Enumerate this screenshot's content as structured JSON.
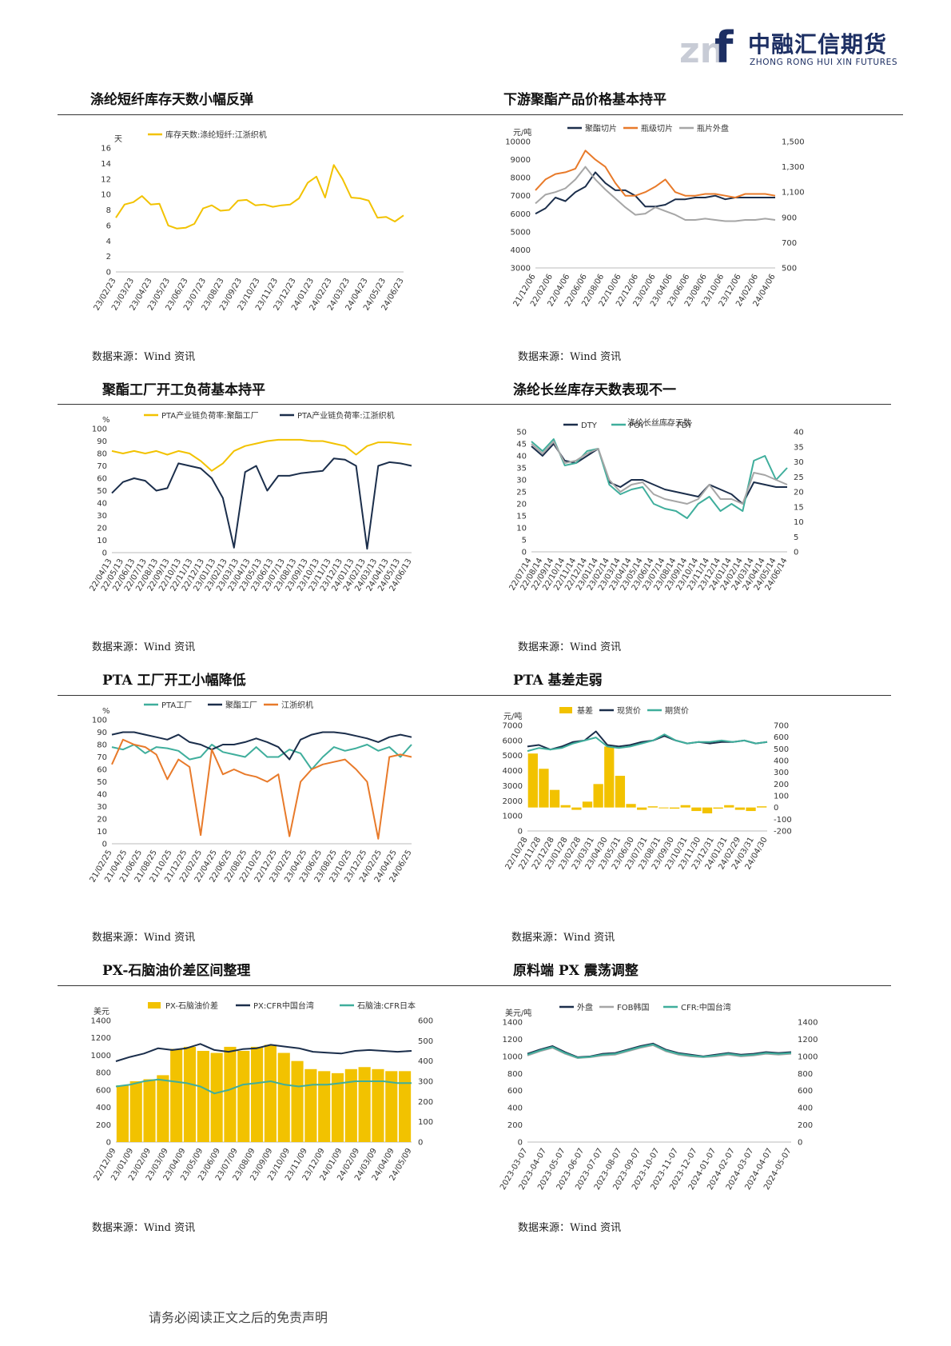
{
  "header": {
    "logo_text": "中融汇信期货",
    "logo_en": "ZHONG RONG HUI XIN FUTURES",
    "logo_mark": "znf"
  },
  "sections": [
    {
      "title": "涤纶短纤库存天数小幅反弹",
      "source": "数据来源：Wind 资讯"
    },
    {
      "title": "下游聚酯产品价格基本持平",
      "source": "数据来源：Wind 资讯"
    },
    {
      "title": "聚酯工厂开工负荷基本持平",
      "source": "数据来源：Wind 资讯"
    },
    {
      "title": "涤纶长丝库存天数表现不一",
      "source": "数据来源：Wind 资讯"
    },
    {
      "title": "PTA 工厂开工小幅降低",
      "source": "数据来源：Wind 资讯"
    },
    {
      "title": "PTA 基差走弱",
      "source": "数据来源：Wind 资讯"
    },
    {
      "title": "PX-石脑油价差区间整理",
      "source": "数据来源：Wind 资讯"
    },
    {
      "title": "原料端 PX 震荡调整",
      "source": "数据来源：Wind 资讯"
    }
  ],
  "footer": {
    "text": "请务必阅读正文之后的免责声明"
  },
  "chart_data": [
    {
      "type": "line",
      "unit": "天",
      "ylim": [
        0,
        16
      ],
      "yticks": [
        0,
        2,
        4,
        6,
        8,
        10,
        12,
        14,
        16
      ],
      "xticks": [
        "23/02/23",
        "23/03/23",
        "23/04/23",
        "23/05/23",
        "23/06/23",
        "23/07/23",
        "23/08/23",
        "23/09/23",
        "23/10/23",
        "23/11/23",
        "23/12/23",
        "24/01/23",
        "24/02/23",
        "24/03/23",
        "24/04/23",
        "24/05/23",
        "24/06/23"
      ],
      "series": [
        {
          "name": "库存天数:涤纶短纤:江浙织机",
          "color": "#f2c200",
          "values": [
            7.0,
            8.7,
            9.0,
            9.8,
            8.7,
            8.8,
            6.0,
            5.6,
            5.7,
            6.2,
            8.2,
            8.6,
            7.9,
            8.0,
            9.2,
            9.3,
            8.6,
            8.7,
            8.4,
            8.6,
            8.7,
            9.5,
            11.5,
            12.3,
            9.6,
            13.8,
            12.0,
            9.6,
            9.5,
            9.2,
            7.0,
            7.1,
            6.5,
            7.3
          ]
        }
      ]
    },
    {
      "type": "line",
      "unit": "元/吨",
      "ylim": [
        3000,
        10000
      ],
      "yticks": [
        3000,
        4000,
        5000,
        6000,
        7000,
        8000,
        9000,
        10000
      ],
      "y2lim": [
        500,
        1500
      ],
      "y2ticks": [
        "500",
        "700",
        "900",
        "1,100",
        "1,300",
        "1,500"
      ],
      "xticks": [
        "21/12/06",
        "22/02/06",
        "22/04/06",
        "22/06/06",
        "22/08/06",
        "22/10/06",
        "22/12/06",
        "23/02/06",
        "23/04/06",
        "23/06/06",
        "23/08/06",
        "23/10/06",
        "23/12/06",
        "24/02/06",
        "24/04/06"
      ],
      "series": [
        {
          "name": "聚酯切片",
          "color": "#1b2e4b",
          "axis": "left",
          "values": [
            6000,
            6300,
            6900,
            6700,
            7200,
            7500,
            8300,
            7700,
            7300,
            7300,
            7000,
            6400,
            6400,
            6500,
            6800,
            6800,
            6900,
            6900,
            7000,
            6800,
            6900,
            6900,
            6900,
            6900,
            6900
          ]
        },
        {
          "name": "瓶级切片",
          "color": "#e87a2a",
          "axis": "left",
          "values": [
            7300,
            7900,
            8200,
            8300,
            8500,
            9500,
            9000,
            8600,
            7700,
            7000,
            7000,
            7200,
            7500,
            7900,
            7200,
            7000,
            7000,
            7100,
            7100,
            7000,
            6900,
            7100,
            7100,
            7100,
            7000
          ]
        },
        {
          "name": "瓶片外盘",
          "color": "#a6a6a6",
          "axis": "right",
          "values": [
            1010,
            1080,
            1100,
            1130,
            1200,
            1300,
            1200,
            1120,
            1050,
            980,
            920,
            930,
            980,
            950,
            920,
            880,
            880,
            890,
            880,
            870,
            870,
            880,
            880,
            890,
            880
          ]
        }
      ]
    },
    {
      "type": "line",
      "unit": "%",
      "ylim": [
        0,
        100
      ],
      "yticks": [
        0,
        10,
        20,
        30,
        40,
        50,
        60,
        70,
        80,
        90,
        100
      ],
      "xticks": [
        "22/04/13",
        "22/05/13",
        "22/06/13",
        "22/07/13",
        "22/08/13",
        "22/09/13",
        "22/10/13",
        "22/11/13",
        "22/12/13",
        "23/01/13",
        "23/02/13",
        "23/03/13",
        "23/04/13",
        "23/05/13",
        "23/06/13",
        "23/07/13",
        "23/08/13",
        "23/09/13",
        "23/10/13",
        "23/11/13",
        "23/12/13",
        "24/01/13",
        "24/02/13",
        "24/03/13",
        "24/04/13",
        "24/05/13",
        "24/06/13"
      ],
      "series": [
        {
          "name": "PTA产业链负荷率:聚酯工厂",
          "color": "#f2c200",
          "values": [
            82,
            80,
            82,
            80,
            82,
            79,
            82,
            80,
            74,
            66,
            72,
            82,
            86,
            88,
            90,
            91,
            91,
            91,
            90,
            90,
            88,
            86,
            79,
            86,
            89,
            89,
            88,
            87
          ]
        },
        {
          "name": "PTA产业链负荷率:江浙织机",
          "color": "#1b2e4b",
          "values": [
            48,
            57,
            60,
            58,
            50,
            52,
            72,
            70,
            68,
            60,
            44,
            4,
            65,
            70,
            50,
            62,
            62,
            64,
            65,
            66,
            76,
            75,
            70,
            3,
            70,
            73,
            72,
            70
          ]
        }
      ]
    },
    {
      "type": "line",
      "ylim": [
        0,
        50
      ],
      "yticks": [
        0,
        5,
        10,
        15,
        20,
        25,
        30,
        35,
        40,
        45,
        50
      ],
      "y2lim": [
        0,
        40
      ],
      "y2ticks": [
        0,
        5,
        10,
        15,
        20,
        25,
        30,
        35,
        40
      ],
      "title": "涤纶长丝库存天数",
      "xticks": [
        "22/07/14",
        "22/08/14",
        "22/09/14",
        "22/10/14",
        "22/11/14",
        "22/12/14",
        "23/01/14",
        "23/02/14",
        "23/03/14",
        "23/04/14",
        "23/05/14",
        "23/06/14",
        "23/07/14",
        "23/08/14",
        "23/09/14",
        "23/10/14",
        "23/11/14",
        "23/12/14",
        "24/01/14",
        "24/02/14",
        "24/03/14",
        "24/04/14",
        "24/05/14",
        "24/06/14"
      ],
      "series": [
        {
          "name": "DTY",
          "color": "#1b2e4b",
          "values": [
            44,
            40,
            45,
            38,
            37,
            40,
            43,
            29,
            27,
            30,
            30,
            28,
            26,
            25,
            24,
            23,
            28,
            26,
            24,
            20,
            29,
            28,
            27,
            27
          ]
        },
        {
          "name": "POY",
          "color": "#3fae9c",
          "values": [
            46,
            42,
            47,
            36,
            37,
            42,
            43,
            28,
            24,
            26,
            27,
            20,
            18,
            17,
            14,
            20,
            23,
            17,
            20,
            17,
            38,
            40,
            30,
            35
          ]
        },
        {
          "name": "FDY",
          "color": "#a6a6a6",
          "values": [
            45,
            41,
            46,
            37,
            38,
            41,
            43,
            30,
            25,
            28,
            29,
            24,
            22,
            21,
            20,
            22,
            28,
            22,
            22,
            20,
            33,
            32,
            30,
            28
          ]
        }
      ]
    },
    {
      "type": "line",
      "unit": "%",
      "ylim": [
        0,
        100
      ],
      "yticks": [
        0,
        10,
        20,
        30,
        40,
        50,
        60,
        70,
        80,
        90,
        100
      ],
      "xticks": [
        "21/02/25",
        "21/04/25",
        "21/06/25",
        "21/08/25",
        "21/10/25",
        "21/12/25",
        "22/02/25",
        "22/04/25",
        "22/06/25",
        "22/08/25",
        "22/10/25",
        "22/12/25",
        "23/02/25",
        "23/04/25",
        "23/06/25",
        "23/08/25",
        "23/10/25",
        "23/12/25",
        "24/02/25",
        "24/04/25",
        "24/06/25"
      ],
      "series": [
        {
          "name": "PTA工厂",
          "color": "#3fae9c",
          "values": [
            78,
            76,
            80,
            73,
            78,
            77,
            75,
            68,
            70,
            80,
            74,
            72,
            70,
            78,
            70,
            70,
            76,
            73,
            60,
            70,
            78,
            75,
            77,
            80,
            75,
            78,
            70,
            80
          ]
        },
        {
          "name": "聚酯工厂",
          "color": "#1b2e4b",
          "values": [
            88,
            90,
            90,
            88,
            86,
            84,
            88,
            82,
            80,
            76,
            80,
            80,
            82,
            85,
            82,
            78,
            68,
            84,
            88,
            90,
            90,
            89,
            87,
            85,
            82,
            86,
            88,
            86
          ]
        },
        {
          "name": "江浙织机",
          "color": "#e87a2a",
          "values": [
            64,
            84,
            80,
            78,
            72,
            52,
            68,
            62,
            7,
            76,
            56,
            60,
            56,
            54,
            50,
            56,
            6,
            50,
            60,
            64,
            66,
            68,
            60,
            50,
            4,
            70,
            72,
            70
          ]
        }
      ]
    },
    {
      "type": "line",
      "unit": "元/吨",
      "ylim": [
        0,
        7000
      ],
      "yticks": [
        0,
        1000,
        2000,
        3000,
        4000,
        5000,
        6000,
        7000
      ],
      "y2lim": [
        -200,
        700
      ],
      "y2ticks": [
        -200,
        -100,
        0,
        100,
        200,
        300,
        400,
        500,
        600,
        700
      ],
      "xticks": [
        "22/10/28",
        "22/11/28",
        "22/12/28",
        "23/01/28",
        "23/02/28",
        "23/03/31",
        "23/04/30",
        "23/05/31",
        "23/06/30",
        "23/07/31",
        "23/08/31",
        "23/09/30",
        "23/10/31",
        "23/11/30",
        "23/12/31",
        "24/01/31",
        "24/02/29",
        "24/03/31",
        "24/04/30"
      ],
      "series": [
        {
          "name": "基差",
          "color": "#f2c200",
          "axis": "right",
          "kind": "bar",
          "values": [
            460,
            330,
            150,
            20,
            -20,
            50,
            200,
            520,
            270,
            30,
            -20,
            10,
            0,
            -10,
            20,
            -30,
            -50,
            -10,
            20,
            -20,
            -30,
            10
          ]
        },
        {
          "name": "现货价",
          "color": "#1b2e4b",
          "axis": "left",
          "values": [
            5600,
            5700,
            5400,
            5600,
            5900,
            6000,
            6600,
            5700,
            5600,
            5700,
            5900,
            6000,
            6300,
            6000,
            5800,
            5900,
            5800,
            5900,
            5900,
            6000,
            5800,
            5900
          ]
        },
        {
          "name": "期货价",
          "color": "#3fae9c",
          "axis": "left",
          "values": [
            5300,
            5500,
            5400,
            5500,
            5800,
            6000,
            6200,
            5600,
            5500,
            5600,
            5800,
            6000,
            6400,
            6000,
            5800,
            5900,
            5900,
            6000,
            5900,
            6000,
            5800,
            5900
          ]
        }
      ]
    },
    {
      "type": "line",
      "unit": "美元",
      "ylim": [
        0,
        1400
      ],
      "yticks": [
        0,
        200,
        400,
        600,
        800,
        1000,
        1200,
        1400
      ],
      "y2lim": [
        0,
        600
      ],
      "y2ticks": [
        0,
        100,
        200,
        300,
        400,
        500,
        600
      ],
      "xticks": [
        "22/12/09",
        "23/01/09",
        "23/02/09",
        "23/03/09",
        "23/04/09",
        "23/05/09",
        "23/06/09",
        "23/07/09",
        "23/08/09",
        "23/09/09",
        "23/10/09",
        "23/11/09",
        "23/12/09",
        "24/01/09",
        "24/02/09",
        "24/03/09",
        "24/04/09",
        "24/05/09"
      ],
      "series": [
        {
          "name": "PX-石脑油价差",
          "color": "#f2c200",
          "axis": "right",
          "kind": "bar",
          "values": [
            280,
            300,
            310,
            330,
            460,
            470,
            450,
            440,
            470,
            450,
            470,
            480,
            440,
            400,
            360,
            350,
            340,
            360,
            370,
            360,
            350,
            350
          ]
        },
        {
          "name": "PX:CFR中国台湾",
          "color": "#1b2e4b",
          "axis": "left",
          "values": [
            930,
            980,
            1020,
            1080,
            1060,
            1080,
            1130,
            1060,
            1040,
            1070,
            1080,
            1120,
            1100,
            1080,
            1040,
            1030,
            1020,
            1050,
            1060,
            1050,
            1040,
            1050
          ]
        },
        {
          "name": "石脑油:CFR日本",
          "color": "#3fae9c",
          "axis": "left",
          "values": [
            640,
            660,
            700,
            720,
            700,
            680,
            640,
            560,
            600,
            660,
            680,
            700,
            660,
            640,
            660,
            660,
            680,
            700,
            700,
            700,
            680,
            680
          ]
        }
      ]
    },
    {
      "type": "line",
      "unit": "美元/吨",
      "ylim": [
        0,
        1400
      ],
      "yticks": [
        0,
        200,
        400,
        600,
        800,
        1000,
        1200,
        1400
      ],
      "y2lim": [
        0,
        1400
      ],
      "y2ticks": [
        0,
        200,
        400,
        600,
        800,
        1000,
        1200,
        1400
      ],
      "xticks": [
        "2023-03-07",
        "2023-04-07",
        "2023-05-07",
        "2023-06-07",
        "2023-07-07",
        "2023-08-07",
        "2023-09-07",
        "2023-10-07",
        "2023-11-07",
        "2023-12-07",
        "2024-01-07",
        "2024-02-07",
        "2024-03-07",
        "2024-04-07",
        "2024-05-07"
      ],
      "series": [
        {
          "name": "外盘",
          "color": "#1b2e4b",
          "values": [
            1030,
            1080,
            1120,
            1050,
            990,
            1000,
            1030,
            1040,
            1080,
            1120,
            1150,
            1080,
            1040,
            1020,
            1000,
            1020,
            1040,
            1020,
            1030,
            1050,
            1040,
            1050
          ]
        },
        {
          "name": "FOB韩国",
          "color": "#a6a6a6",
          "values": [
            1010,
            1060,
            1100,
            1030,
            980,
            990,
            1010,
            1020,
            1060,
            1100,
            1130,
            1060,
            1020,
            1000,
            990,
            1000,
            1020,
            1000,
            1010,
            1030,
            1020,
            1030
          ]
        },
        {
          "name": "CFR:中国台湾",
          "color": "#3fae9c",
          "values": [
            1020,
            1070,
            1110,
            1040,
            985,
            995,
            1020,
            1030,
            1070,
            1110,
            1140,
            1070,
            1030,
            1010,
            995,
            1010,
            1030,
            1010,
            1020,
            1040,
            1030,
            1040
          ]
        }
      ]
    }
  ]
}
